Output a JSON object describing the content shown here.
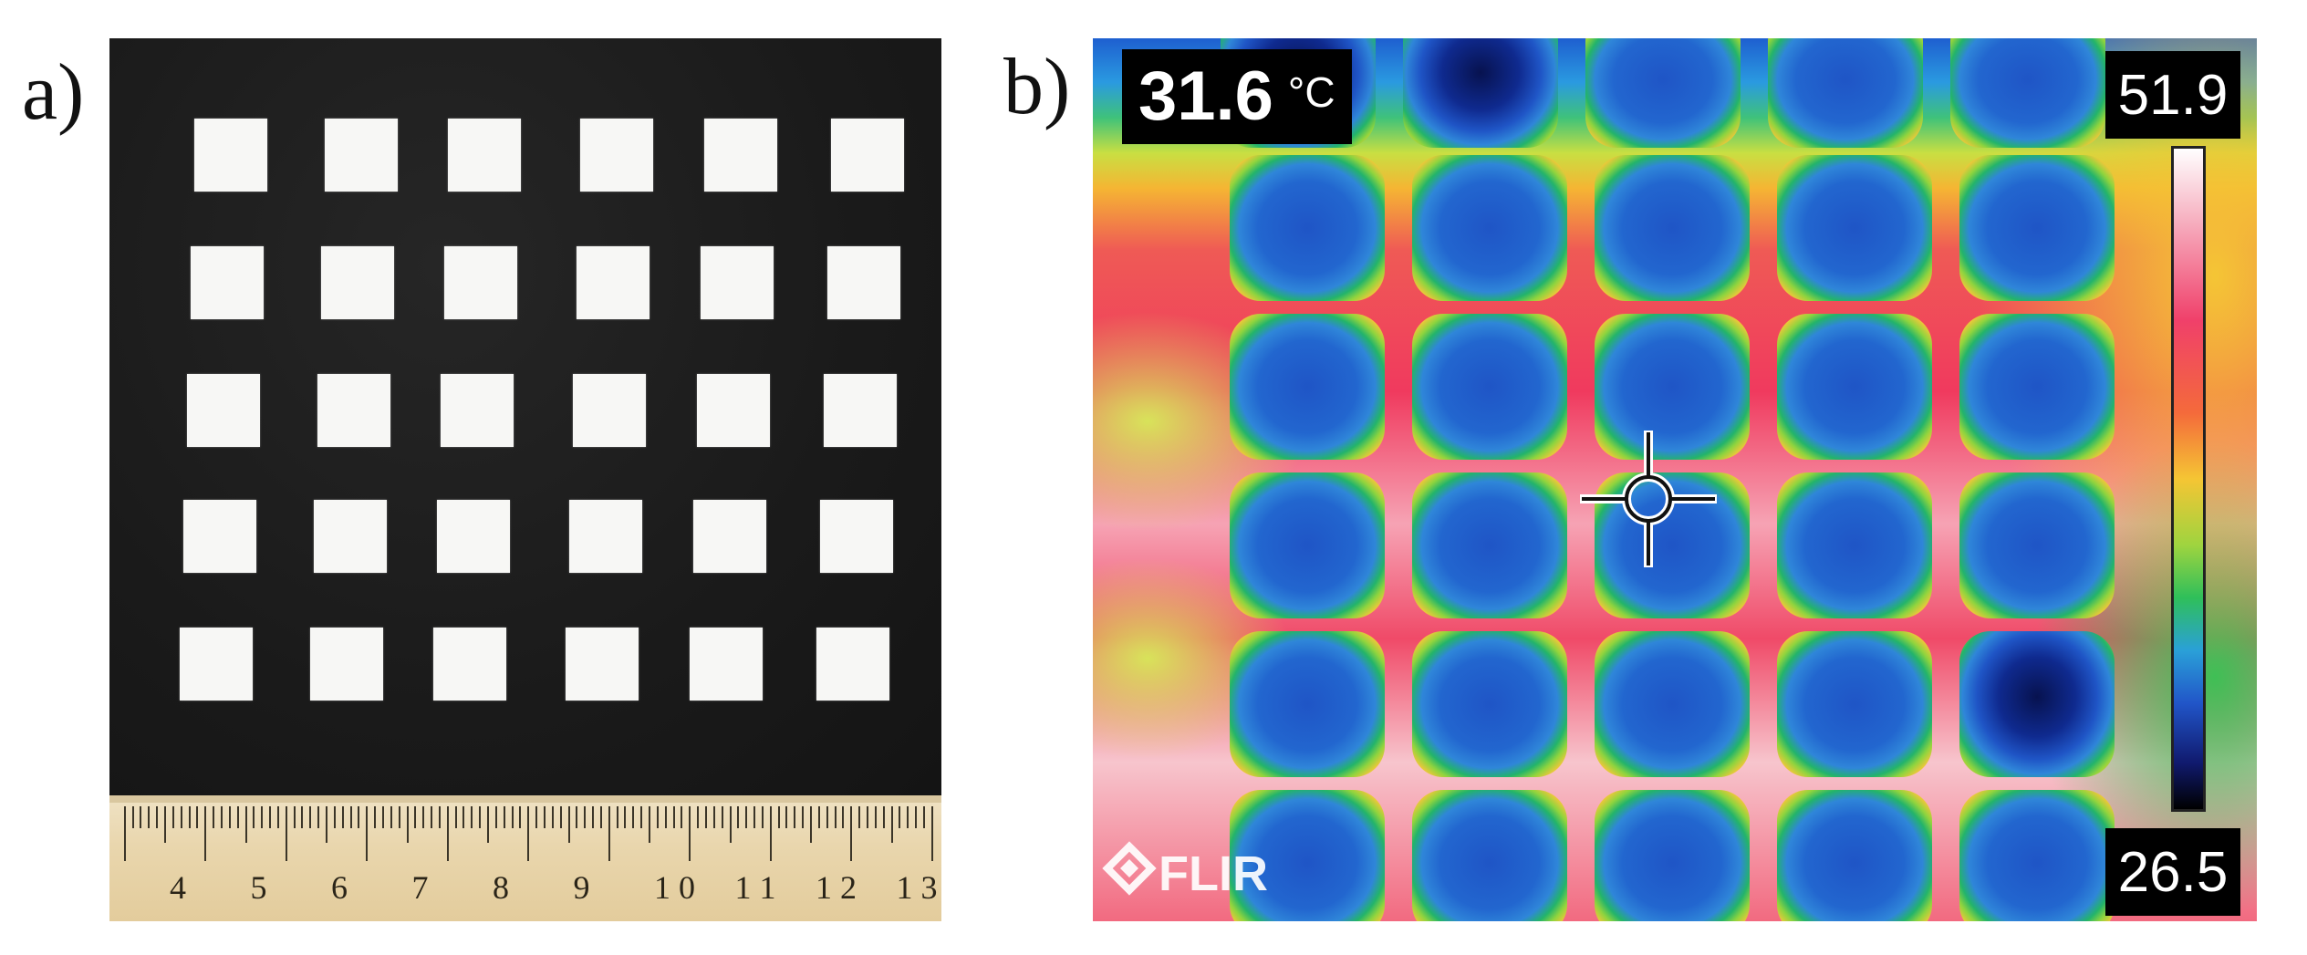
{
  "panels": {
    "a": {
      "label": "a)"
    },
    "b": {
      "label": "b)"
    }
  },
  "ruler": {
    "numbers": [
      "4",
      "5",
      "6",
      "7",
      "8",
      "9",
      "1 0",
      "1 1",
      "1 2",
      "1 3"
    ]
  },
  "thermal": {
    "spot_value": "31.6",
    "spot_unit": "°C",
    "scale_max": "51.9",
    "scale_min": "26.5",
    "logo_text": "FLIR",
    "colors": {
      "hot": "#f03a5e",
      "cold": "#1f55c6"
    }
  },
  "grid": {
    "rows": 5,
    "cols": 6,
    "thermal_rows": 6,
    "thermal_cols": 5
  }
}
